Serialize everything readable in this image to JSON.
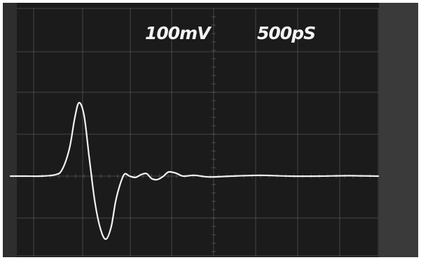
{
  "colors": {
    "screen": "#1b1b1b",
    "bezel_left": "#2e2e2e",
    "bezel_right": "#3a3a3a",
    "graticule": "#6a6a6a",
    "trace": "#f2f2f2",
    "border": "#ffffff"
  },
  "readouts": {
    "vertical_scale": "100mV",
    "horizontal_scale": "500pS"
  },
  "chart_data": {
    "type": "line",
    "title": "",
    "xlabel": "",
    "ylabel": "",
    "x_units": "ps",
    "y_units": "mV",
    "x_per_division_ps": 500,
    "y_per_division_mV": 100,
    "xlim": [
      0,
      5000
    ],
    "ylim": [
      -400,
      400
    ],
    "grid": true,
    "legend": "none",
    "series": [
      {
        "x": [
          0,
          200,
          400,
          600,
          700,
          800,
          870,
          930,
          1000,
          1070,
          1150,
          1230,
          1300,
          1370,
          1430,
          1490,
          1550,
          1620,
          1700,
          1780,
          1850,
          1920,
          2000,
          2080,
          2150,
          2250,
          2350,
          2500,
          2700,
          3000,
          3400,
          3800,
          4200,
          4600,
          5000
        ],
        "y": [
          0,
          0,
          0,
          3,
          15,
          65,
          135,
          175,
          145,
          45,
          -65,
          -130,
          -150,
          -120,
          -60,
          -20,
          5,
          0,
          -3,
          4,
          6,
          -6,
          -8,
          0,
          10,
          7,
          0,
          2,
          -2,
          0,
          2,
          0,
          0,
          1,
          0
        ]
      }
    ]
  }
}
